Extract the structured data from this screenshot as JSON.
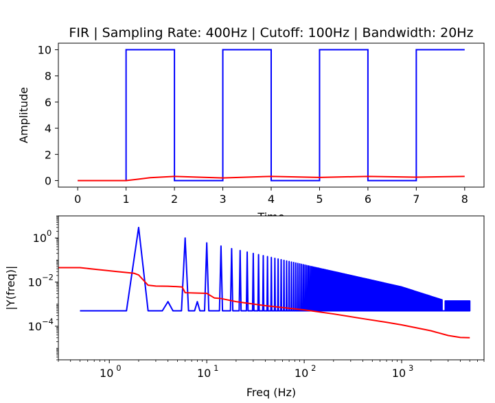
{
  "chart_data": [
    {
      "type": "line",
      "title": "FIR | Sampling Rate: 400Hz | Cutoff: 100Hz | Bandwidth: 20Hz",
      "xlabel": "Time",
      "ylabel": "Amplitude",
      "xlim": [
        -0.4,
        8.4
      ],
      "ylim": [
        -0.5,
        10.5
      ],
      "xticks": [
        "0",
        "1",
        "2",
        "3",
        "4",
        "5",
        "6",
        "7",
        "8"
      ],
      "yticks": [
        "0",
        "2",
        "4",
        "6",
        "8",
        "10"
      ],
      "grid": false,
      "series": [
        {
          "color": "#0000ff",
          "x": [
            0,
            1,
            1,
            2,
            2,
            3,
            3,
            4,
            4,
            5,
            5,
            6,
            6,
            7,
            7,
            8
          ],
          "y": [
            0,
            0,
            10,
            10,
            0,
            0,
            10,
            10,
            0,
            0,
            10,
            10,
            0,
            0,
            10,
            10
          ]
        },
        {
          "color": "#ff0000",
          "x": [
            0,
            1,
            1.2,
            1.5,
            2,
            3,
            4,
            5,
            6,
            7,
            8
          ],
          "y": [
            0,
            0,
            0.08,
            0.22,
            0.32,
            0.2,
            0.32,
            0.24,
            0.32,
            0.26,
            0.32
          ]
        }
      ]
    },
    {
      "type": "line",
      "xlabel": "Freq (Hz)",
      "ylabel": "|Y(freq)|",
      "xscale": "log",
      "yscale": "log",
      "xlim": [
        0.3,
        7000
      ],
      "ylim": [
        3e-06,
        10
      ],
      "xticks": [
        {
          "base": "10",
          "exp": "0"
        },
        {
          "base": "10",
          "exp": "1"
        },
        {
          "base": "10",
          "exp": "2"
        },
        {
          "base": "10",
          "exp": "3"
        }
      ],
      "yticks": [
        {
          "base": "10",
          "exp": "−4"
        },
        {
          "base": "10",
          "exp": "−2"
        },
        {
          "base": "10",
          "exp": "0"
        }
      ],
      "grid": false,
      "series": [
        {
          "color": "#0000ff",
          "description": "input spectrum: odd harmonics of 0.5 Hz square wave over noise floor",
          "floor": 0.0005,
          "fundamental": 2,
          "peaks": [
            {
              "f": 2,
              "a": 3.0
            },
            {
              "f": 4,
              "a": 0.0013
            },
            {
              "f": 6,
              "a": 1.0
            },
            {
              "f": 8,
              "a": 0.0013
            },
            {
              "f": 10,
              "a": 0.6
            },
            {
              "f": 14,
              "a": 0.43
            },
            {
              "f": 18,
              "a": 0.33
            },
            {
              "f": 22,
              "a": 0.27
            },
            {
              "f": 26,
              "a": 0.23
            },
            {
              "f": 30,
              "a": 0.2
            },
            {
              "f": 50,
              "a": 0.12
            },
            {
              "f": 100,
              "a": 0.06
            },
            {
              "f": 300,
              "a": 0.02
            },
            {
              "f": 1000,
              "a": 0.006
            },
            {
              "f": 2800,
              "a": 0.0014
            },
            {
              "f": 5000,
              "a": 0.0014
            }
          ],
          "x_end": 5000
        },
        {
          "color": "#ff0000",
          "x": [
            0.3,
            0.5,
            0.8,
            1.2,
            1.8,
            2.0,
            2.5,
            3.0,
            4.0,
            5.0,
            5.6,
            6.0,
            7.5,
            10,
            12,
            14,
            20,
            40,
            70,
            100,
            200,
            400,
            700,
            1000,
            2000,
            3000,
            4000,
            5000
          ],
          "y": [
            0.045,
            0.045,
            0.036,
            0.03,
            0.025,
            0.021,
            0.0072,
            0.0066,
            0.0065,
            0.0062,
            0.006,
            0.0033,
            0.0032,
            0.0031,
            0.0019,
            0.0018,
            0.0013,
            0.00085,
            0.00065,
            0.00055,
            0.00036,
            0.00022,
            0.00015,
            0.000115,
            6.2e-05,
            3.8e-05,
            3.1e-05,
            3e-05
          ]
        }
      ]
    }
  ]
}
